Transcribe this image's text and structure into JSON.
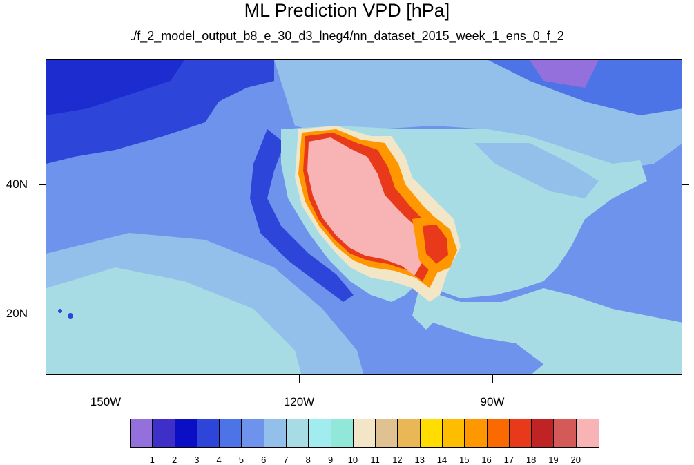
{
  "title": "ML Prediction VPD [hPa]",
  "subtitle": "./f_2_model_output_b8_e_30_d3_lneg4/nn_dataset_2015_week_1_ens_0_f_2",
  "lat_labels": [
    "40N",
    "20N"
  ],
  "lon_labels": [
    "150W",
    "120W",
    "90W"
  ],
  "colorbar": {
    "labels": [
      "1",
      "2",
      "3",
      "4",
      "5",
      "6",
      "7",
      "8",
      "9",
      "10",
      "11",
      "12",
      "13",
      "14",
      "15",
      "16",
      "17",
      "18",
      "19",
      "20"
    ],
    "colors": [
      "#9370db",
      "#3f2fc9",
      "#0a0ec4",
      "#2d46d9",
      "#4d74e6",
      "#6e93ec",
      "#92c0ea",
      "#a8dce4",
      "#a0ecef",
      "#92e8d8",
      "#f2e6c6",
      "#e0c292",
      "#e9b755",
      "#ffdd00",
      "#ffbd00",
      "#ff9800",
      "#fb6a00",
      "#e83a1a",
      "#bf2323",
      "#d45a5a",
      "#f8b4b4"
    ]
  },
  "colors": {
    "ocean_deep": "#2d46d9",
    "ocean_mid": "#4d74e6",
    "ocean_light": "#6e93ec",
    "land_light": "#a8dce4",
    "desert_pink": "#f8b4b4"
  }
}
